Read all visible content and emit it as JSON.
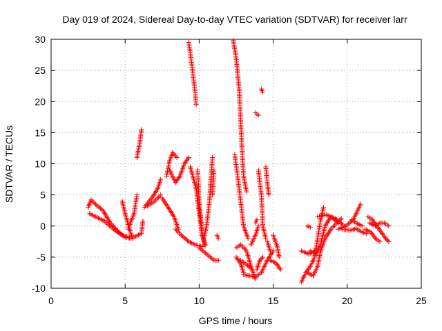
{
  "chart_data": {
    "type": "scatter",
    "title": "Day 019 of 2024, Sidereal Day-to-day VTEC variation (SDTVAR) for receiver larr",
    "xlabel": "GPS time / hours",
    "ylabel": "SDTVAR / TECUs",
    "xlim": [
      0,
      25
    ],
    "ylim": [
      -10,
      30
    ],
    "xticks": [
      0,
      5,
      10,
      15,
      20,
      25
    ],
    "yticks": [
      -10,
      -5,
      0,
      5,
      10,
      15,
      20,
      25,
      30
    ],
    "grid": true,
    "marker": "+",
    "marker_color": "#ff0000",
    "tracks": [
      [
        [
          2.5,
          3.0
        ],
        [
          2.7,
          4.2
        ],
        [
          3.0,
          3.5
        ],
        [
          3.5,
          2.5
        ],
        [
          4.0,
          0.5
        ],
        [
          4.5,
          -0.8
        ],
        [
          5.0,
          -1.8
        ],
        [
          5.4,
          -2.0
        ]
      ],
      [
        [
          2.6,
          2.0
        ],
        [
          3.0,
          1.5
        ],
        [
          3.6,
          0.8
        ],
        [
          4.2,
          -0.5
        ],
        [
          4.8,
          -1.5
        ],
        [
          5.3,
          -1.8
        ]
      ],
      [
        [
          4.8,
          4.0
        ],
        [
          5.0,
          2.0
        ],
        [
          5.3,
          -0.5
        ],
        [
          5.5,
          -2.0
        ]
      ],
      [
        [
          5.2,
          -0.5
        ],
        [
          5.6,
          2.0
        ],
        [
          5.8,
          5.0
        ]
      ],
      [
        [
          5.6,
          -1.8
        ],
        [
          6.1,
          -1.2
        ],
        [
          6.2,
          0.8
        ]
      ],
      [
        [
          5.8,
          11.0
        ],
        [
          6.0,
          13.5
        ],
        [
          6.1,
          15.5
        ]
      ],
      [
        [
          6.3,
          3.0
        ],
        [
          6.8,
          4.5
        ],
        [
          7.2,
          6.0
        ],
        [
          7.4,
          7.5
        ]
      ],
      [
        [
          6.5,
          3.2
        ],
        [
          7.0,
          4.0
        ],
        [
          7.4,
          5.0
        ]
      ],
      [
        [
          7.5,
          4.5
        ],
        [
          7.9,
          3.0
        ],
        [
          8.3,
          1.5
        ],
        [
          8.6,
          -0.5
        ]
      ],
      [
        [
          7.8,
          8.0
        ],
        [
          8.0,
          10.5
        ],
        [
          8.2,
          11.8
        ],
        [
          8.5,
          11.0
        ]
      ],
      [
        [
          8.0,
          9.0
        ],
        [
          8.4,
          7.0
        ],
        [
          8.7,
          8.0
        ],
        [
          9.0,
          10.0
        ],
        [
          9.3,
          11.0
        ]
      ],
      [
        [
          8.4,
          -0.5
        ],
        [
          8.8,
          -1.5
        ],
        [
          9.3,
          -2.5
        ],
        [
          9.7,
          -3.0
        ],
        [
          10.2,
          -3.3
        ]
      ],
      [
        [
          9.3,
          29.5
        ],
        [
          9.5,
          26.0
        ],
        [
          9.7,
          22.0
        ],
        [
          9.8,
          19.5
        ]
      ],
      [
        [
          9.4,
          9.5
        ],
        [
          9.8,
          6.0
        ],
        [
          10.0,
          2.0
        ],
        [
          10.2,
          -1.5
        ],
        [
          10.4,
          -3.0
        ]
      ],
      [
        [
          9.9,
          9.0
        ],
        [
          10.0,
          4.0
        ],
        [
          10.2,
          -1.0
        ],
        [
          10.4,
          -3.2
        ]
      ],
      [
        [
          10.3,
          -2.0
        ],
        [
          10.5,
          0.0
        ],
        [
          10.7,
          4.0
        ],
        [
          10.8,
          8.0
        ],
        [
          10.9,
          11.0
        ]
      ],
      [
        [
          10.0,
          -3.5
        ],
        [
          10.5,
          -4.5
        ],
        [
          11.0,
          -5.5
        ],
        [
          11.3,
          -5.5
        ]
      ],
      [
        [
          10.9,
          5.0
        ],
        [
          11.0,
          9.0
        ]
      ],
      [
        [
          11.2,
          -1.5
        ],
        [
          11.3,
          -2.0
        ]
      ],
      [
        [
          12.3,
          29.8
        ],
        [
          12.5,
          27.0
        ],
        [
          12.7,
          22.0
        ],
        [
          12.8,
          17.0
        ],
        [
          12.9,
          12.0
        ],
        [
          13.0,
          8.0
        ],
        [
          13.2,
          5.5
        ]
      ],
      [
        [
          12.4,
          11.5
        ],
        [
          12.6,
          8.0
        ],
        [
          12.8,
          4.0
        ],
        [
          13.0,
          0.0
        ],
        [
          13.3,
          -2.0
        ]
      ],
      [
        [
          12.5,
          -3.5
        ],
        [
          12.8,
          -3.0
        ],
        [
          13.2,
          -4.0
        ],
        [
          13.5,
          -6.5
        ],
        [
          13.8,
          -8.5
        ]
      ],
      [
        [
          12.5,
          -5.0
        ],
        [
          12.8,
          -6.0
        ],
        [
          13.0,
          -7.5
        ]
      ],
      [
        [
          12.8,
          -5.5
        ],
        [
          13.2,
          -6.2
        ],
        [
          13.5,
          -6.8
        ]
      ],
      [
        [
          13.0,
          -7.8
        ],
        [
          13.4,
          -8.0
        ],
        [
          13.8,
          -8.2
        ],
        [
          14.2,
          -7.5
        ],
        [
          14.6,
          -5.5
        ],
        [
          15.0,
          -4.0
        ]
      ],
      [
        [
          13.5,
          -3.0
        ],
        [
          13.8,
          -1.5
        ],
        [
          14.0,
          0.0
        ]
      ],
      [
        [
          13.9,
          -7.0
        ],
        [
          14.1,
          -5.5
        ],
        [
          14.3,
          -5.0
        ]
      ],
      [
        [
          13.8,
          0.5
        ],
        [
          13.9,
          1.0
        ]
      ],
      [
        [
          13.8,
          18.2
        ],
        [
          14.0,
          17.8
        ]
      ],
      [
        [
          14.0,
          9.0
        ],
        [
          14.2,
          5.0
        ],
        [
          14.3,
          0.0
        ],
        [
          14.5,
          -2.0
        ]
      ],
      [
        [
          14.2,
          22.0
        ],
        [
          14.3,
          21.5
        ]
      ],
      [
        [
          14.5,
          9.5
        ],
        [
          14.6,
          7.0
        ],
        [
          14.7,
          5.0
        ]
      ],
      [
        [
          14.6,
          -2.5
        ],
        [
          14.8,
          -4.0
        ]
      ],
      [
        [
          14.8,
          -5.5
        ],
        [
          15.2,
          -6.0
        ],
        [
          15.5,
          -7.0
        ]
      ],
      [
        [
          15.0,
          -1.5
        ],
        [
          15.3,
          -3.5
        ],
        [
          15.4,
          -5.0
        ]
      ],
      [
        [
          16.9,
          -9.0
        ],
        [
          17.2,
          -7.5
        ],
        [
          17.5,
          -6.5
        ],
        [
          17.8,
          -5.0
        ],
        [
          18.0,
          -2.0
        ],
        [
          18.2,
          1.0
        ],
        [
          18.4,
          3.0
        ]
      ],
      [
        [
          16.9,
          -4.0
        ],
        [
          17.4,
          -4.5
        ],
        [
          17.8,
          -4.0
        ]
      ],
      [
        [
          17.3,
          -7.5
        ],
        [
          17.7,
          -8.0
        ],
        [
          18.0,
          -6.5
        ],
        [
          18.2,
          -4.0
        ],
        [
          18.5,
          -2.0
        ],
        [
          18.9,
          -0.5
        ],
        [
          19.3,
          0.5
        ],
        [
          19.6,
          1.2
        ]
      ],
      [
        [
          17.5,
          -4.0
        ],
        [
          17.9,
          -4.5
        ],
        [
          18.2,
          -3.0
        ],
        [
          18.5,
          0.0
        ],
        [
          18.9,
          1.5
        ],
        [
          19.4,
          0.5
        ]
      ],
      [
        [
          18.0,
          1.5
        ],
        [
          18.6,
          1.8
        ],
        [
          19.2,
          1.2
        ],
        [
          19.7,
          0.2
        ]
      ],
      [
        [
          17.3,
          0.0
        ],
        [
          17.5,
          -0.2
        ]
      ],
      [
        [
          19.4,
          -0.5
        ],
        [
          19.9,
          0.0
        ],
        [
          20.4,
          1.0
        ],
        [
          20.7,
          2.5
        ],
        [
          20.9,
          3.5
        ]
      ],
      [
        [
          19.7,
          -0.5
        ],
        [
          20.2,
          -0.7
        ],
        [
          20.6,
          -0.4
        ],
        [
          21.0,
          -1.0
        ],
        [
          21.3,
          -1.2
        ]
      ],
      [
        [
          20.3,
          1.0
        ],
        [
          20.6,
          0.5
        ],
        [
          21.0,
          0.0
        ]
      ],
      [
        [
          21.2,
          -0.5
        ],
        [
          21.6,
          -1.0
        ],
        [
          21.9,
          -2.0
        ],
        [
          22.2,
          -2.5
        ]
      ],
      [
        [
          21.4,
          1.5
        ],
        [
          21.7,
          1.0
        ],
        [
          22.0,
          0.0
        ],
        [
          22.3,
          -1.0
        ],
        [
          22.6,
          -2.0
        ],
        [
          22.8,
          -2.5
        ]
      ],
      [
        [
          21.5,
          0.5
        ],
        [
          21.9,
          0.0
        ],
        [
          22.2,
          0.5
        ],
        [
          22.5,
          0.5
        ],
        [
          22.8,
          0.0
        ]
      ]
    ]
  }
}
